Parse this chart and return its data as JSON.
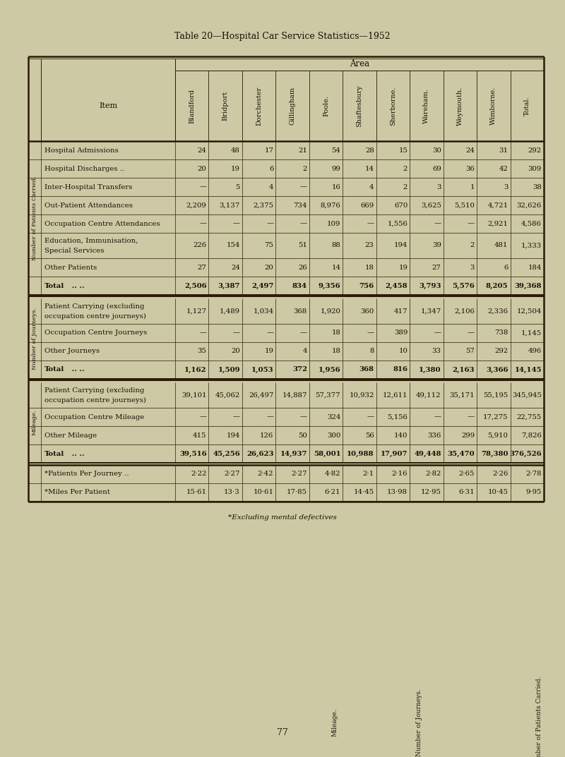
{
  "title": "Table 20—Hospital Car Service Statistics—1952",
  "bg_color": "#cdc9a5",
  "text_color": "#1a0f05",
  "page_number": "77",
  "footnote": "*Excluding mental defectives",
  "columns": [
    "Blandford",
    "Bridport",
    "Dorchester",
    "Gillingham",
    "Poole.",
    "Shaftesbury",
    "Sherborne.",
    "Wareham.",
    "Weymouth.",
    "Wimborne.",
    "Total."
  ],
  "row_groups": [
    {
      "side_label": "Number of Patients Carried.",
      "rows": [
        {
          "item": "Hospital Admissions",
          "suffix": " ..",
          "vals": [
            "24",
            "48",
            "17",
            "21",
            "54",
            "28",
            "15",
            "30",
            "24",
            "31",
            "292"
          ],
          "is_total": false,
          "tall": false
        },
        {
          "item": "Hospital Discharges ..",
          "suffix": " ..",
          "vals": [
            "20",
            "19",
            "6",
            "2",
            "99",
            "14",
            "2",
            "69",
            "36",
            "42",
            "309"
          ],
          "is_total": false,
          "tall": false
        },
        {
          "item": "Inter-Hospital Transfers",
          "suffix": " ..",
          "vals": [
            "—",
            "5",
            "4",
            "—",
            "16",
            "4",
            "2",
            "3",
            "1",
            "3",
            "38"
          ],
          "is_total": false,
          "tall": false
        },
        {
          "item": "Out-Patient Attendances",
          "suffix": " ..",
          "vals": [
            "2,209",
            "3,137",
            "2,375",
            "734",
            "8,976",
            "669",
            "670",
            "3,625",
            "5,510",
            "4,721",
            "32,626"
          ],
          "is_total": false,
          "tall": false
        },
        {
          "item": "Occupation Centre Attendances",
          "suffix": "",
          "vals": [
            "—",
            "—",
            "—",
            "—",
            "109",
            "—",
            "1,556",
            "—",
            "—",
            "2,921",
            "4,586"
          ],
          "is_total": false,
          "tall": false
        },
        {
          "item": "Education, Immunisation,",
          "item2": "  Special Services",
          "suffix": " ..",
          "vals": [
            "226",
            "154",
            "75",
            "51",
            "88",
            "23",
            "194",
            "39",
            "2",
            "481",
            "1,333"
          ],
          "is_total": false,
          "tall": true
        },
        {
          "item": "Other Patients",
          "suffix": " ..",
          "vals": [
            "27",
            "24",
            "20",
            "26",
            "14",
            "18",
            "19",
            "27",
            "3",
            "6",
            "184"
          ],
          "is_total": false,
          "tall": false
        },
        {
          "item": "Total",
          "suffix": " ..",
          "vals": [
            "2,506",
            "3,387",
            "2,497",
            "834",
            "9,356",
            "756",
            "2,458",
            "3,793",
            "5,576",
            "8,205",
            "39,368"
          ],
          "is_total": true,
          "tall": false
        }
      ]
    },
    {
      "side_label": "Number of Journeys.",
      "rows": [
        {
          "item": "Patient Carrying (excluding",
          "item2": "  occupation centre journeys)",
          "suffix": "",
          "vals": [
            "1,127",
            "1,489",
            "1,034",
            "368",
            "1,920",
            "360",
            "417",
            "1,347",
            "2,106",
            "2,336",
            "12,504"
          ],
          "is_total": false,
          "tall": true
        },
        {
          "item": "Occupation Centre Journeys",
          "suffix": " ..",
          "vals": [
            "—",
            "—",
            "—",
            "—",
            "18",
            "—",
            "389",
            "—",
            "—",
            "738",
            "1,145"
          ],
          "is_total": false,
          "tall": false
        },
        {
          "item": "Other Journeys",
          "suffix": " ..",
          "vals": [
            "35",
            "20",
            "19",
            "4",
            "18",
            "8",
            "10",
            "33",
            "57",
            "292",
            "496"
          ],
          "is_total": false,
          "tall": false
        },
        {
          "item": "Total",
          "suffix": " ..",
          "vals": [
            "1,162",
            "1,509",
            "1,053",
            "372",
            "1,956",
            "368",
            "816",
            "1,380",
            "2,163",
            "3,366",
            "14,145"
          ],
          "is_total": true,
          "tall": false
        }
      ]
    },
    {
      "side_label": "Mileage.",
      "rows": [
        {
          "item": "Patient Carrying (excluding",
          "item2": "  occupation centre journeys)",
          "suffix": "",
          "vals": [
            "39,101",
            "45,062",
            "26,497",
            "14,887",
            "57,377",
            "10,932",
            "12,611",
            "49,112",
            "35,171",
            "55,195",
            "345,945"
          ],
          "is_total": false,
          "tall": true
        },
        {
          "item": "Occupation Centre Mileage",
          "suffix": " ..",
          "vals": [
            "—",
            "—",
            "—",
            "—",
            "324",
            "—",
            "5,156",
            "—",
            "—",
            "17,275",
            "22,755"
          ],
          "is_total": false,
          "tall": false
        },
        {
          "item": "Other Mileage",
          "suffix": " ..",
          "vals": [
            "415",
            "194",
            "126",
            "50",
            "300",
            "56",
            "140",
            "336",
            "299",
            "5,910",
            "7,826"
          ],
          "is_total": false,
          "tall": false
        },
        {
          "item": "Total",
          "suffix": " ..",
          "vals": [
            "39,516",
            "45,256",
            "26,623",
            "14,937",
            "58,001",
            "10,988",
            "17,907",
            "49,448",
            "35,470",
            "78,380",
            "376,526"
          ],
          "is_total": true,
          "tall": false
        }
      ]
    }
  ],
  "extra_rows": [
    {
      "item": "*Patients Per Journey ..",
      "suffix": " ..",
      "vals": [
        "2·22",
        "2·27",
        "2·42",
        "2·27",
        "4·82",
        "2·1",
        "2·16",
        "2·82",
        "2·65",
        "2·26",
        "2·78"
      ]
    },
    {
      "item": "*Miles Per Patient",
      "suffix": " ..",
      "vals": [
        "15·61",
        "13·3",
        "10·61",
        "17·85",
        "6·21",
        "14·45",
        "13·98",
        "12·95",
        "6·31",
        "10·45",
        "9·95"
      ]
    }
  ]
}
